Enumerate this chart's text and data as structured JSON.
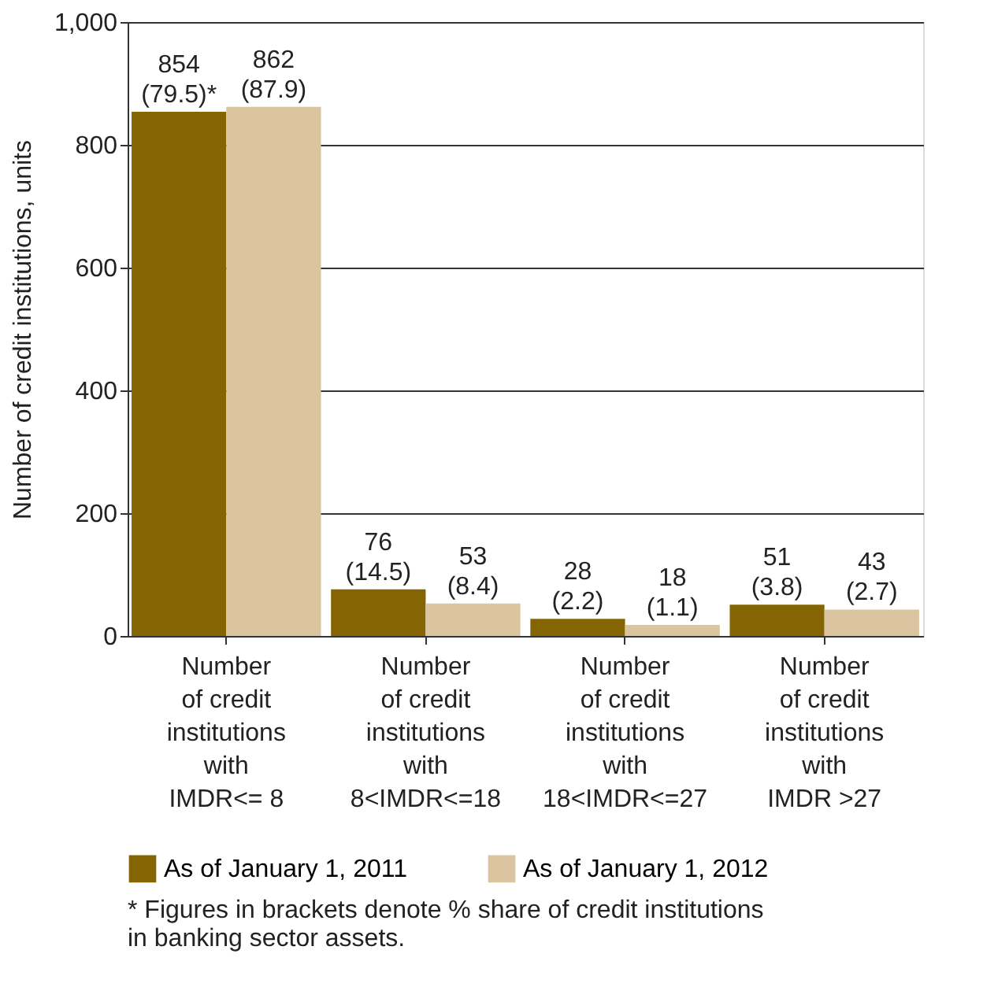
{
  "chart_data": {
    "type": "bar",
    "ylabel": "Number of credit institutions, units",
    "categories": [
      "Number\nof credit\ninstitutions\nwith\nIMDR<= 8",
      "Number\nof credit\ninstitutions\nwith\n8<IMDR<=18",
      "Number\nof credit\ninstitutions\nwith\n18<IMDR<=27",
      "Number\nof credit\ninstitutions\nwith\nIMDR >27"
    ],
    "series": [
      {
        "name": "As of January 1, 2011",
        "color": "#856404",
        "values": [
          854,
          76,
          28,
          51
        ],
        "value_labels": [
          "854 (79.5)*",
          "76 (14.5)",
          "28 (2.2)",
          "51 (3.8)"
        ]
      },
      {
        "name": "As of January 1, 2012",
        "color": "#dbc5a0",
        "values": [
          862,
          53,
          18,
          43
        ],
        "value_labels": [
          "862 (87.9)",
          "53 (8.4)",
          "18 (1.1)",
          "43 (2.7)"
        ]
      }
    ],
    "ylim": [
      0,
      1000
    ],
    "yticks": [
      0,
      200,
      400,
      600,
      800,
      {
        "value": 1000,
        "label": "1,000"
      }
    ],
    "grid": "y",
    "legend": "bottom",
    "annotations": [
      "* Figures in brackets denote % share of credit institutions in banking sector assets."
    ]
  }
}
